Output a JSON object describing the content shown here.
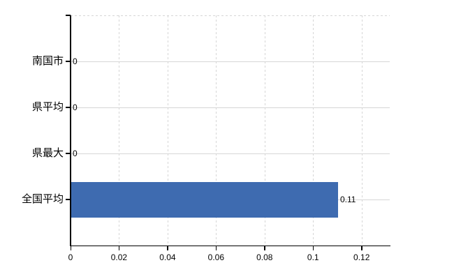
{
  "chart_data": {
    "type": "bar",
    "orientation": "horizontal",
    "title": "",
    "xlabel": "",
    "ylabel": "",
    "categories": [
      "南国市",
      "県平均",
      "県最大",
      "全国平均"
    ],
    "values": [
      0,
      0,
      0,
      0.11
    ],
    "value_labels": [
      "0",
      "0",
      "0",
      "0.11"
    ],
    "x_tick_values": [
      0,
      0.02,
      0.04,
      0.06,
      0.08,
      0.1,
      0.12
    ],
    "x_tick_labels": [
      "0",
      "0.02",
      "0.04",
      "0.06",
      "0.08",
      "0.1",
      "0.12"
    ],
    "xlim": [
      0,
      0.1316
    ],
    "grid": "horizontal-solid vertical-dashed top-border-dashed",
    "legend": false,
    "colors": {
      "bar": "#3e6bb0",
      "grid": "#d6d6d6",
      "axis": "#000000",
      "text": "#000000",
      "background": "#ffffff"
    }
  }
}
